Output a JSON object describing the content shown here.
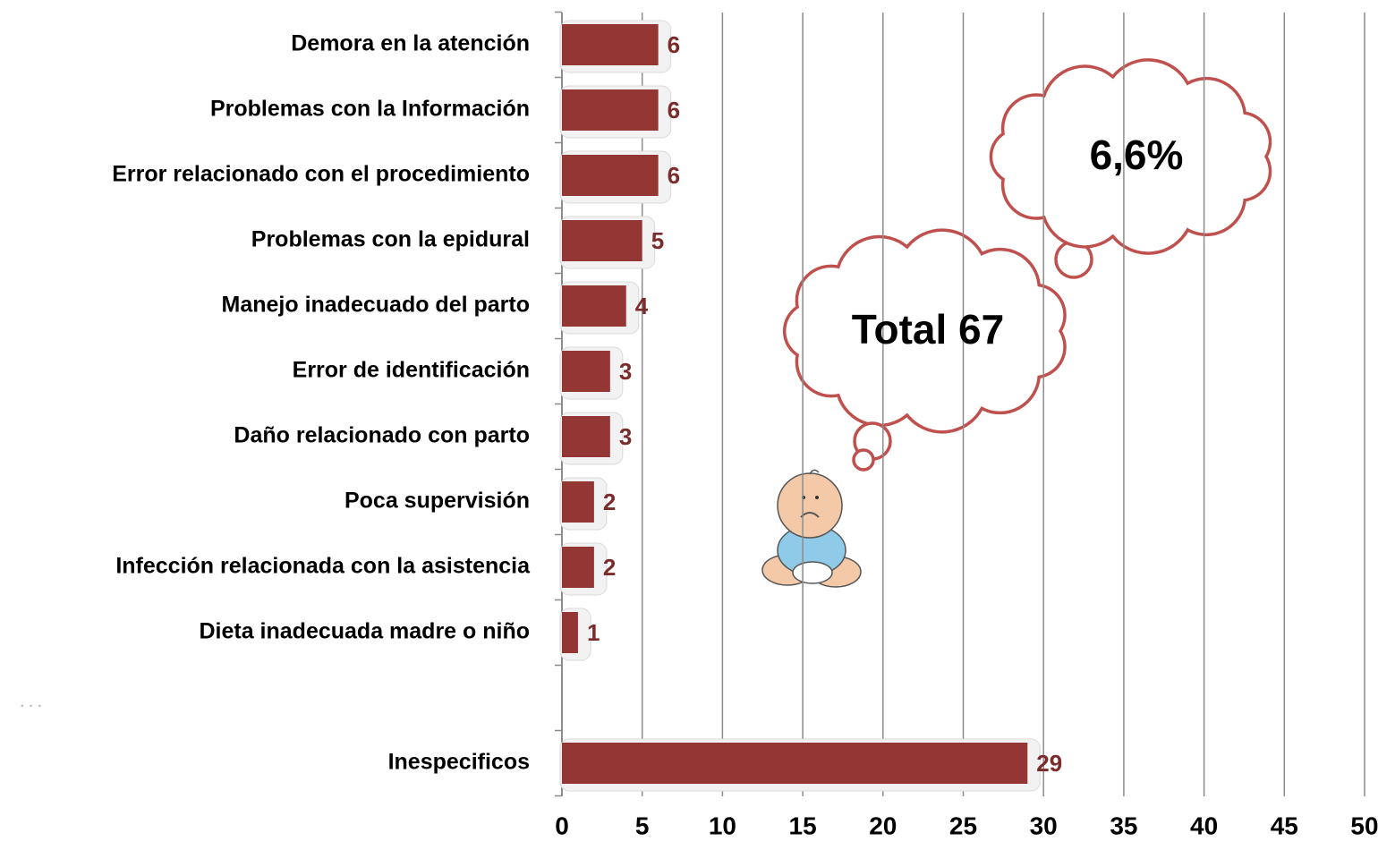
{
  "chart_data": {
    "type": "bar",
    "orientation": "horizontal",
    "categories": [
      "Demora en la atención",
      "Problemas con la Información",
      "Error relacionado con el procedimiento",
      "Problemas con la epidural",
      "Manejo inadecuado del parto",
      "Error de identificación",
      "Daño relacionado con parto",
      "Poca supervisión",
      "Infección  relacionada con la asistencia",
      "Dieta inadecuada madre o niño",
      null,
      "Inespecificos"
    ],
    "values": [
      6,
      6,
      6,
      5,
      4,
      3,
      3,
      2,
      2,
      1,
      null,
      29
    ],
    "color": "#943634",
    "xlim": [
      0,
      50
    ],
    "xticks": [
      0,
      5,
      10,
      15,
      20,
      25,
      30,
      35,
      40,
      45,
      50
    ],
    "grid": true,
    "annotations": [
      "6,6%",
      "Total 67",
      "· · ·"
    ]
  }
}
